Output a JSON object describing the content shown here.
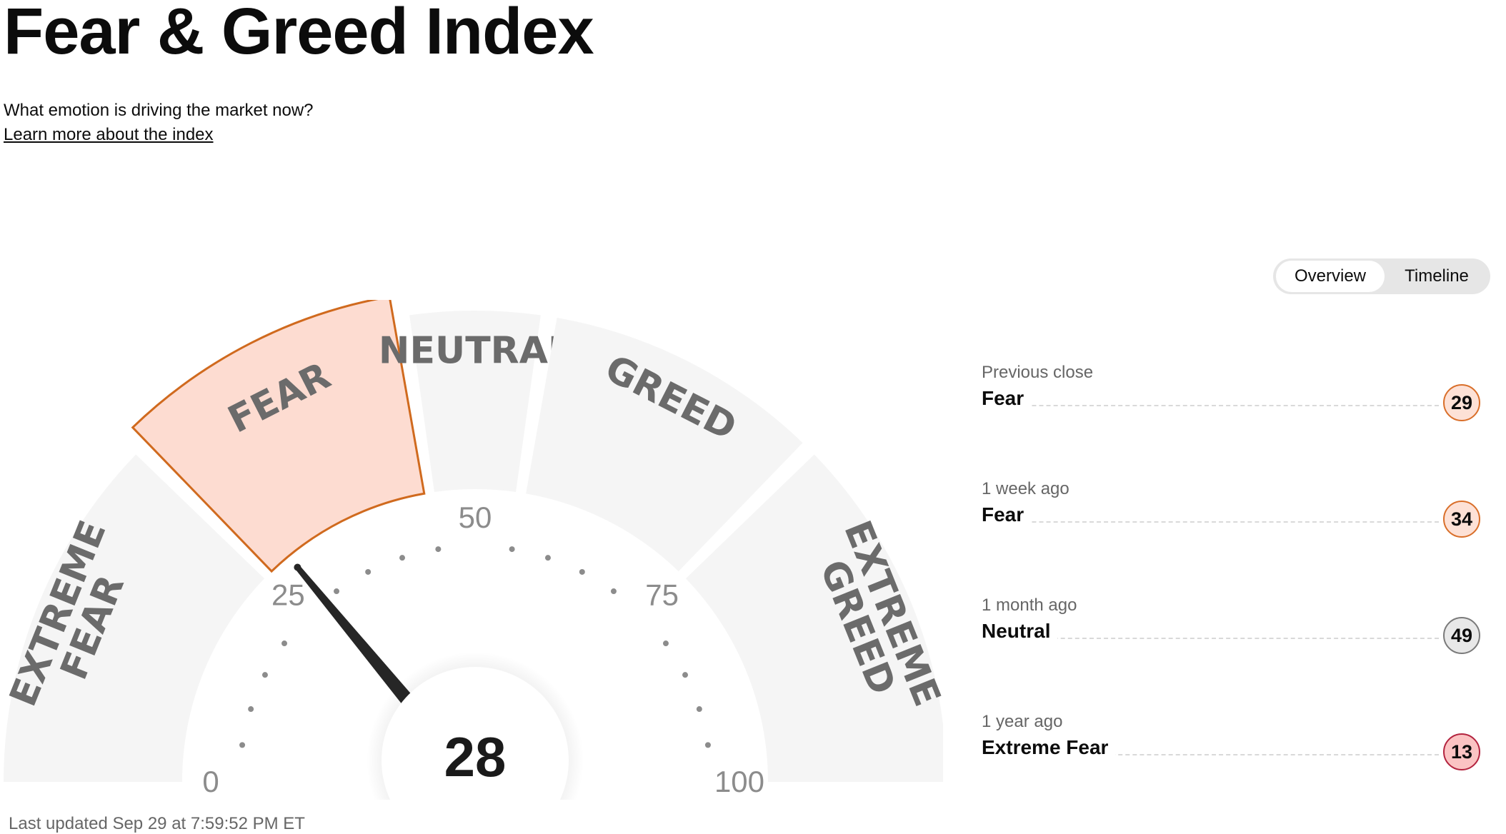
{
  "header": {
    "title": "Fear & Greed Index",
    "subtitle": "What emotion is driving the market now?",
    "learn_more": "Learn more about the index"
  },
  "gauge": {
    "value": 28,
    "min": 0,
    "max": 100,
    "current_rating": "Fear",
    "scale_labels": [
      "0",
      "25",
      "50",
      "75",
      "100"
    ],
    "zones": [
      {
        "label": "EXTREME FEAR",
        "range": [
          0,
          25
        ]
      },
      {
        "label": "FEAR",
        "range": [
          25,
          45
        ]
      },
      {
        "label": "NEUTRAL",
        "range": [
          45,
          55
        ]
      },
      {
        "label": "GREED",
        "range": [
          55,
          75
        ]
      },
      {
        "label": "EXTREME GREED",
        "range": [
          75,
          100
        ]
      }
    ],
    "colors": {
      "zone_fill": "#f5f5f5",
      "active_fill": "#fddcd1",
      "active_stroke": "#d06a1e",
      "zone_text": "#6b6b6b",
      "needle": "#262626"
    }
  },
  "view_toggle": {
    "options": [
      "Overview",
      "Timeline"
    ],
    "selected": "Overview"
  },
  "history": [
    {
      "when": "Previous close",
      "rating": "Fear",
      "value": "29"
    },
    {
      "when": "1 week ago",
      "rating": "Fear",
      "value": "34"
    },
    {
      "when": "1 month ago",
      "rating": "Neutral",
      "value": "49"
    },
    {
      "when": "1 year ago",
      "rating": "Extreme Fear",
      "value": "13"
    }
  ],
  "footer": {
    "last_updated": "Last updated Sep 29 at 7:59:52 PM ET"
  }
}
